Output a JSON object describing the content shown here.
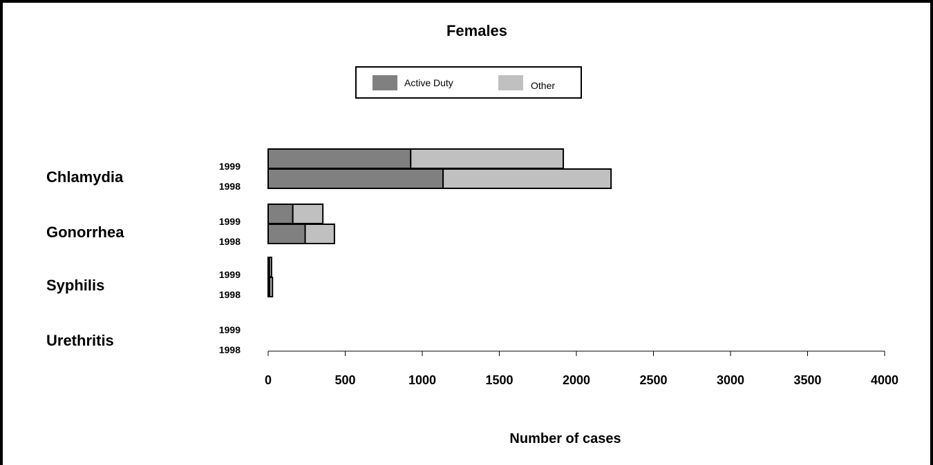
{
  "chart_data": {
    "type": "bar",
    "orientation": "horizontal",
    "stacked": true,
    "title": "Females",
    "xlabel": "Number of cases",
    "ylabel": "",
    "xlim": [
      0,
      4000
    ],
    "x_ticks": [
      "0",
      "500",
      "1000",
      "1500",
      "2000",
      "2500",
      "3000",
      "3500",
      "4000"
    ],
    "grid": false,
    "legend_position": "top-center",
    "colors": {
      "Active Duty": "#808080",
      "Other": "#c0c0c0"
    },
    "groups": [
      {
        "name": "Chlamydia",
        "bars": [
          {
            "year": "1999",
            "values": {
              "Active Duty": 925,
              "Other": 990
            }
          },
          {
            "year": "1998",
            "values": {
              "Active Duty": 1135,
              "Other": 1090
            }
          }
        ]
      },
      {
        "name": "Gonorrhea",
        "bars": [
          {
            "year": "1999",
            "values": {
              "Active Duty": 160,
              "Other": 195
            }
          },
          {
            "year": "1998",
            "values": {
              "Active Duty": 240,
              "Other": 190
            }
          }
        ]
      },
      {
        "name": "Syphilis",
        "bars": [
          {
            "year": "1999",
            "values": {
              "Active Duty": 8,
              "Other": 14
            }
          },
          {
            "year": "1998",
            "values": {
              "Active Duty": 10,
              "Other": 18
            }
          }
        ]
      },
      {
        "name": "Urethritis",
        "bars": [
          {
            "year": "1999",
            "values": {
              "Active Duty": 0,
              "Other": 0
            }
          },
          {
            "year": "1998",
            "values": {
              "Active Duty": 0,
              "Other": 0
            }
          }
        ]
      }
    ],
    "series": [
      {
        "name": "Active Duty"
      },
      {
        "name": "Other"
      }
    ]
  }
}
